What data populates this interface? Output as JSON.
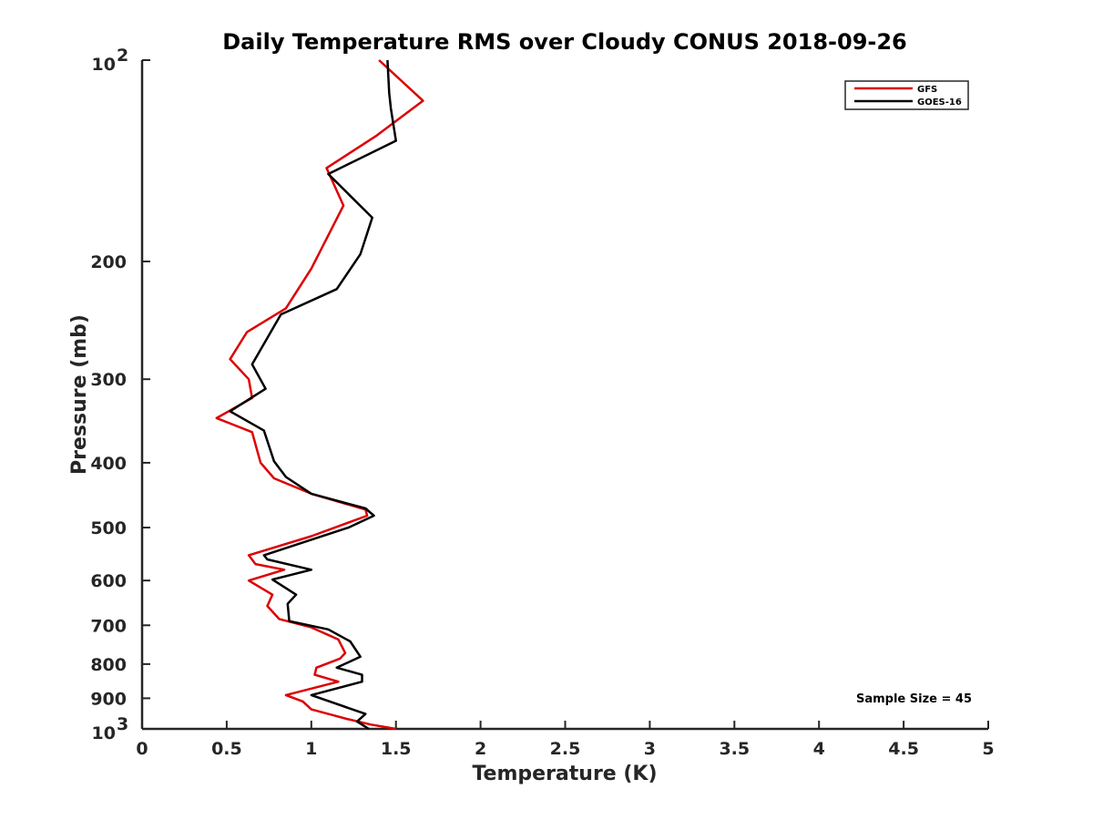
{
  "chart_data": {
    "type": "line",
    "title": "Daily Temperature RMS over Cloudy CONUS 2018-09-26",
    "xlabel": "Temperature (K)",
    "ylabel": "Pressure (mb)",
    "xlim": [
      0,
      5
    ],
    "ylim": [
      100,
      1000
    ],
    "y_scale": "log",
    "y_reversed": true,
    "x_ticks": [
      "0",
      "0.5",
      "1",
      "1.5",
      "2",
      "2.5",
      "3",
      "3.5",
      "4",
      "4.5",
      "5"
    ],
    "y_ticks": [
      {
        "value": 100,
        "base": "10",
        "exp": "2"
      },
      {
        "value": 200,
        "label": "200"
      },
      {
        "value": 300,
        "label": "300"
      },
      {
        "value": 400,
        "label": "400"
      },
      {
        "value": 500,
        "label": "500"
      },
      {
        "value": 600,
        "label": "600"
      },
      {
        "value": 700,
        "label": "700"
      },
      {
        "value": 800,
        "label": "800"
      },
      {
        "value": 900,
        "label": "900"
      },
      {
        "value": 1000,
        "base": "10",
        "exp": "3"
      }
    ],
    "grid": false,
    "legend_position": "top-right",
    "annotation": "Sample Size = 45",
    "series": [
      {
        "name": "GFS",
        "color": "#dd0000",
        "points": [
          [
            1.4,
            100
          ],
          [
            1.66,
            115
          ],
          [
            1.38,
            130
          ],
          [
            1.09,
            145
          ],
          [
            1.19,
            165
          ],
          [
            1.0,
            205
          ],
          [
            0.85,
            235
          ],
          [
            0.62,
            255
          ],
          [
            0.52,
            280
          ],
          [
            0.63,
            300
          ],
          [
            0.65,
            320
          ],
          [
            0.44,
            343
          ],
          [
            0.65,
            360
          ],
          [
            0.7,
            400
          ],
          [
            0.78,
            422
          ],
          [
            1.0,
            445
          ],
          [
            1.32,
            470
          ],
          [
            1.33,
            480
          ],
          [
            1.0,
            515
          ],
          [
            0.63,
            550
          ],
          [
            0.67,
            567
          ],
          [
            0.84,
            578
          ],
          [
            0.63,
            600
          ],
          [
            0.77,
            630
          ],
          [
            0.74,
            655
          ],
          [
            0.81,
            685
          ],
          [
            1.0,
            705
          ],
          [
            1.16,
            735
          ],
          [
            1.2,
            770
          ],
          [
            1.17,
            785
          ],
          [
            1.03,
            810
          ],
          [
            1.02,
            830
          ],
          [
            1.16,
            850
          ],
          [
            0.85,
            890
          ],
          [
            0.95,
            910
          ],
          [
            1.0,
            935
          ],
          [
            1.2,
            965
          ],
          [
            1.35,
            985
          ],
          [
            1.5,
            1000
          ]
        ]
      },
      {
        "name": "GOES-16",
        "color": "#000000",
        "points": [
          [
            1.45,
            100
          ],
          [
            1.46,
            112
          ],
          [
            1.47,
            118
          ],
          [
            1.5,
            132
          ],
          [
            1.1,
            148
          ],
          [
            1.36,
            172
          ],
          [
            1.29,
            195
          ],
          [
            1.15,
            220
          ],
          [
            0.82,
            240
          ],
          [
            0.65,
            285
          ],
          [
            0.73,
            310
          ],
          [
            0.52,
            335
          ],
          [
            0.72,
            358
          ],
          [
            0.78,
            398
          ],
          [
            0.85,
            420
          ],
          [
            1.0,
            445
          ],
          [
            1.32,
            468
          ],
          [
            1.37,
            480
          ],
          [
            1.22,
            500
          ],
          [
            0.72,
            550
          ],
          [
            0.74,
            558
          ],
          [
            1.0,
            578
          ],
          [
            0.77,
            598
          ],
          [
            0.91,
            630
          ],
          [
            0.86,
            650
          ],
          [
            0.87,
            690
          ],
          [
            1.1,
            710
          ],
          [
            1.23,
            740
          ],
          [
            1.29,
            780
          ],
          [
            1.15,
            810
          ],
          [
            1.3,
            830
          ],
          [
            1.3,
            850
          ],
          [
            1.0,
            890
          ],
          [
            1.32,
            950
          ],
          [
            1.27,
            975
          ],
          [
            1.34,
            1000
          ]
        ]
      }
    ]
  }
}
